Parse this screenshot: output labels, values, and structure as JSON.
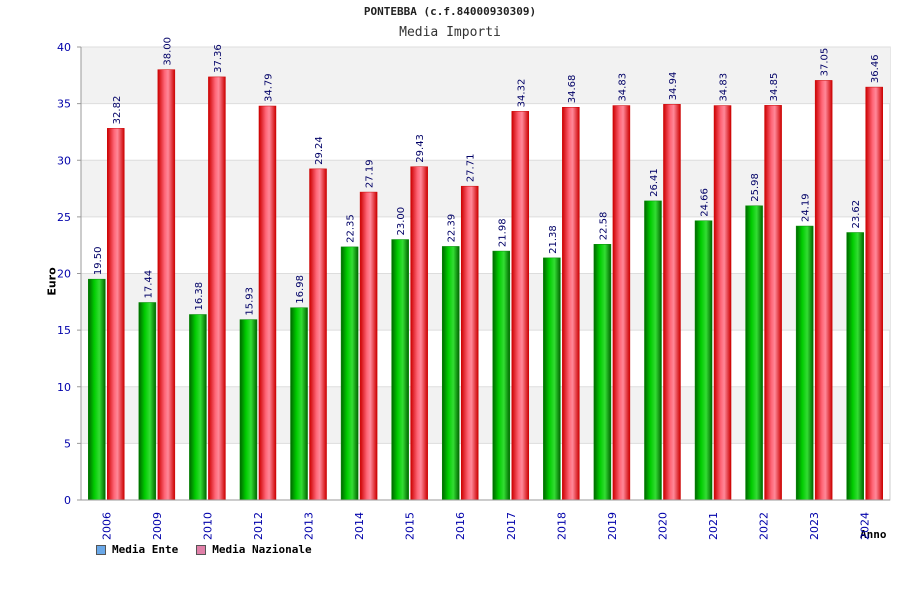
{
  "chart_data": {
    "type": "bar",
    "title": "PONTEBBA (c.f.84000930309)",
    "subtitle": "Media Importi",
    "xlabel": "Anno",
    "ylabel": "Euro",
    "ylim": [
      0,
      40
    ],
    "yticks": [
      0,
      5,
      10,
      15,
      20,
      25,
      30,
      35,
      40
    ],
    "grid": true,
    "legend_position": "bottom-left",
    "categories": [
      "2006",
      "2009",
      "2010",
      "2012",
      "2013",
      "2014",
      "2015",
      "2016",
      "2017",
      "2018",
      "2019",
      "2020",
      "2021",
      "2022",
      "2023",
      "2024"
    ],
    "series": [
      {
        "name": "Media Ente",
        "color": "#00aa00",
        "legend_color": "#6aa8e8",
        "values": [
          19.5,
          17.44,
          16.38,
          15.93,
          16.98,
          22.35,
          23.0,
          22.39,
          21.98,
          21.38,
          22.58,
          26.41,
          24.66,
          25.98,
          24.19,
          23.62
        ],
        "labels": [
          "19.50",
          "17.44",
          "16.38",
          "15.93",
          "16.98",
          "22.35",
          "23.00",
          "22.39",
          "21.98",
          "21.38",
          "22.58",
          "26.41",
          "24.66",
          "25.98",
          "24.19",
          "23.62"
        ]
      },
      {
        "name": "Media Nazionale",
        "color": "#e01020",
        "legend_color": "#e080a8",
        "values": [
          32.82,
          38.0,
          37.36,
          34.79,
          29.24,
          27.19,
          29.43,
          27.71,
          34.32,
          34.68,
          34.83,
          34.94,
          34.83,
          34.85,
          37.05,
          36.46
        ],
        "labels": [
          "32.82",
          "38.00",
          "37.36",
          "34.79",
          "29.24",
          "27.19",
          "29.43",
          "27.71",
          "34.32",
          "34.68",
          "34.83",
          "34.94",
          "34.83",
          "34.85",
          "37.05",
          "36.46"
        ]
      }
    ]
  }
}
